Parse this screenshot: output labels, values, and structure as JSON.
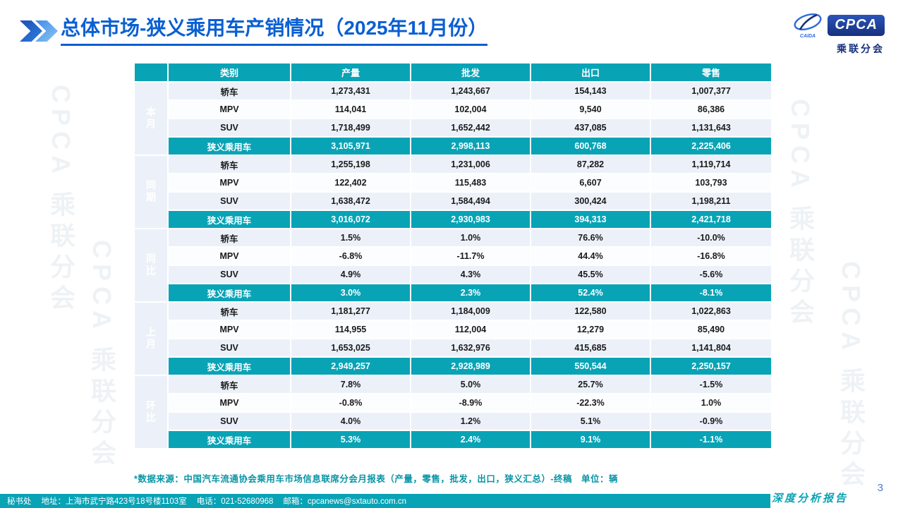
{
  "brand": {
    "cpca": "CPCA",
    "caida": "CAIDA",
    "subtitle": "乘联分会",
    "watermark": "CPCA 乘联分会",
    "colors": {
      "teal": "#09a3b6",
      "title_blue": "#0a5fd2",
      "logo_navy": "#16307e"
    }
  },
  "header": {
    "title": "总体市场-狭义乘用车产销情况（2025年11月份）"
  },
  "table": {
    "columns": [
      "类别",
      "产量",
      "批发",
      "出口",
      "零售"
    ],
    "groups": [
      {
        "label": "本月",
        "rows": [
          {
            "category": "轿车",
            "values": [
              "1,273,431",
              "1,243,667",
              "154,143",
              "1,007,377"
            ],
            "total": false
          },
          {
            "category": "MPV",
            "values": [
              "114,041",
              "102,004",
              "9,540",
              "86,386"
            ],
            "total": false
          },
          {
            "category": "SUV",
            "values": [
              "1,718,499",
              "1,652,442",
              "437,085",
              "1,131,643"
            ],
            "total": false
          },
          {
            "category": "狭义乘用车",
            "values": [
              "3,105,971",
              "2,998,113",
              "600,768",
              "2,225,406"
            ],
            "total": true
          }
        ]
      },
      {
        "label": "同期",
        "rows": [
          {
            "category": "轿车",
            "values": [
              "1,255,198",
              "1,231,006",
              "87,282",
              "1,119,714"
            ],
            "total": false
          },
          {
            "category": "MPV",
            "values": [
              "122,402",
              "115,483",
              "6,607",
              "103,793"
            ],
            "total": false
          },
          {
            "category": "SUV",
            "values": [
              "1,638,472",
              "1,584,494",
              "300,424",
              "1,198,211"
            ],
            "total": false
          },
          {
            "category": "狭义乘用车",
            "values": [
              "3,016,072",
              "2,930,983",
              "394,313",
              "2,421,718"
            ],
            "total": true
          }
        ]
      },
      {
        "label": "同比",
        "rows": [
          {
            "category": "轿车",
            "values": [
              "1.5%",
              "1.0%",
              "76.6%",
              "-10.0%"
            ],
            "total": false
          },
          {
            "category": "MPV",
            "values": [
              "-6.8%",
              "-11.7%",
              "44.4%",
              "-16.8%"
            ],
            "total": false
          },
          {
            "category": "SUV",
            "values": [
              "4.9%",
              "4.3%",
              "45.5%",
              "-5.6%"
            ],
            "total": false
          },
          {
            "category": "狭义乘用车",
            "values": [
              "3.0%",
              "2.3%",
              "52.4%",
              "-8.1%"
            ],
            "total": true
          }
        ]
      },
      {
        "label": "上月",
        "rows": [
          {
            "category": "轿车",
            "values": [
              "1,181,277",
              "1,184,009",
              "122,580",
              "1,022,863"
            ],
            "total": false
          },
          {
            "category": "MPV",
            "values": [
              "114,955",
              "112,004",
              "12,279",
              "85,490"
            ],
            "total": false
          },
          {
            "category": "SUV",
            "values": [
              "1,653,025",
              "1,632,976",
              "415,685",
              "1,141,804"
            ],
            "total": false
          },
          {
            "category": "狭义乘用车",
            "values": [
              "2,949,257",
              "2,928,989",
              "550,544",
              "2,250,157"
            ],
            "total": true
          }
        ]
      },
      {
        "label": "环比",
        "rows": [
          {
            "category": "轿车",
            "values": [
              "7.8%",
              "5.0%",
              "25.7%",
              "-1.5%"
            ],
            "total": false
          },
          {
            "category": "MPV",
            "values": [
              "-0.8%",
              "-8.9%",
              "-22.3%",
              "1.0%"
            ],
            "total": false
          },
          {
            "category": "SUV",
            "values": [
              "4.0%",
              "1.2%",
              "5.1%",
              "-0.9%"
            ],
            "total": false
          },
          {
            "category": "狭义乘用车",
            "values": [
              "5.3%",
              "2.4%",
              "9.1%",
              "-1.1%"
            ],
            "total": true
          }
        ]
      }
    ]
  },
  "footnote": "*数据来源：中国汽车流通协会乘用车市场信息联席分会月报表（产量，零售，批发，出口，狭义汇总）-终稿　单位：辆",
  "footer": {
    "secretariat": "秘书处",
    "address": "地址：上海市武宁路423号18号楼1103室",
    "phone": "电话：021-52680968",
    "email": "邮箱：cpcanews@sxtauto.com.cn",
    "report_label": "深度分析报告",
    "page_number": "3"
  }
}
